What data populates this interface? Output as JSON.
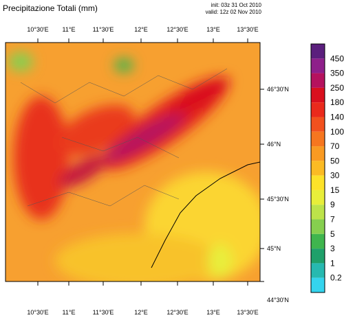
{
  "title": "Precipitazione Totali (mm)",
  "init": "init: 03z 31 Oct 2010",
  "valid": "valid: 12z 02 Nov 2010",
  "lon_labels": [
    "10°30'E",
    "11°E",
    "11°30'E",
    "12°E",
    "12°30'E",
    "13°E",
    "13°30'E"
  ],
  "lat_labels": [
    "46°30'N",
    "46°N",
    "45°30'N",
    "45°N",
    "44°30'N"
  ],
  "colorbar": {
    "levels": [
      "450",
      "350",
      "250",
      "180",
      "140",
      "100",
      "70",
      "50",
      "30",
      "15",
      "9",
      "7",
      "5",
      "3",
      "1",
      "0.2"
    ],
    "colors": [
      "#5b1f7d",
      "#8e1f8a",
      "#b5125e",
      "#d9101e",
      "#ea2a1c",
      "#f2511e",
      "#f6761f",
      "#f99a22",
      "#fbbb24",
      "#fde229",
      "#e8ee3a",
      "#bde34a",
      "#86cf4f",
      "#3fb54e",
      "#1fa06a",
      "#27b9b0",
      "#34d4ee"
    ]
  }
}
